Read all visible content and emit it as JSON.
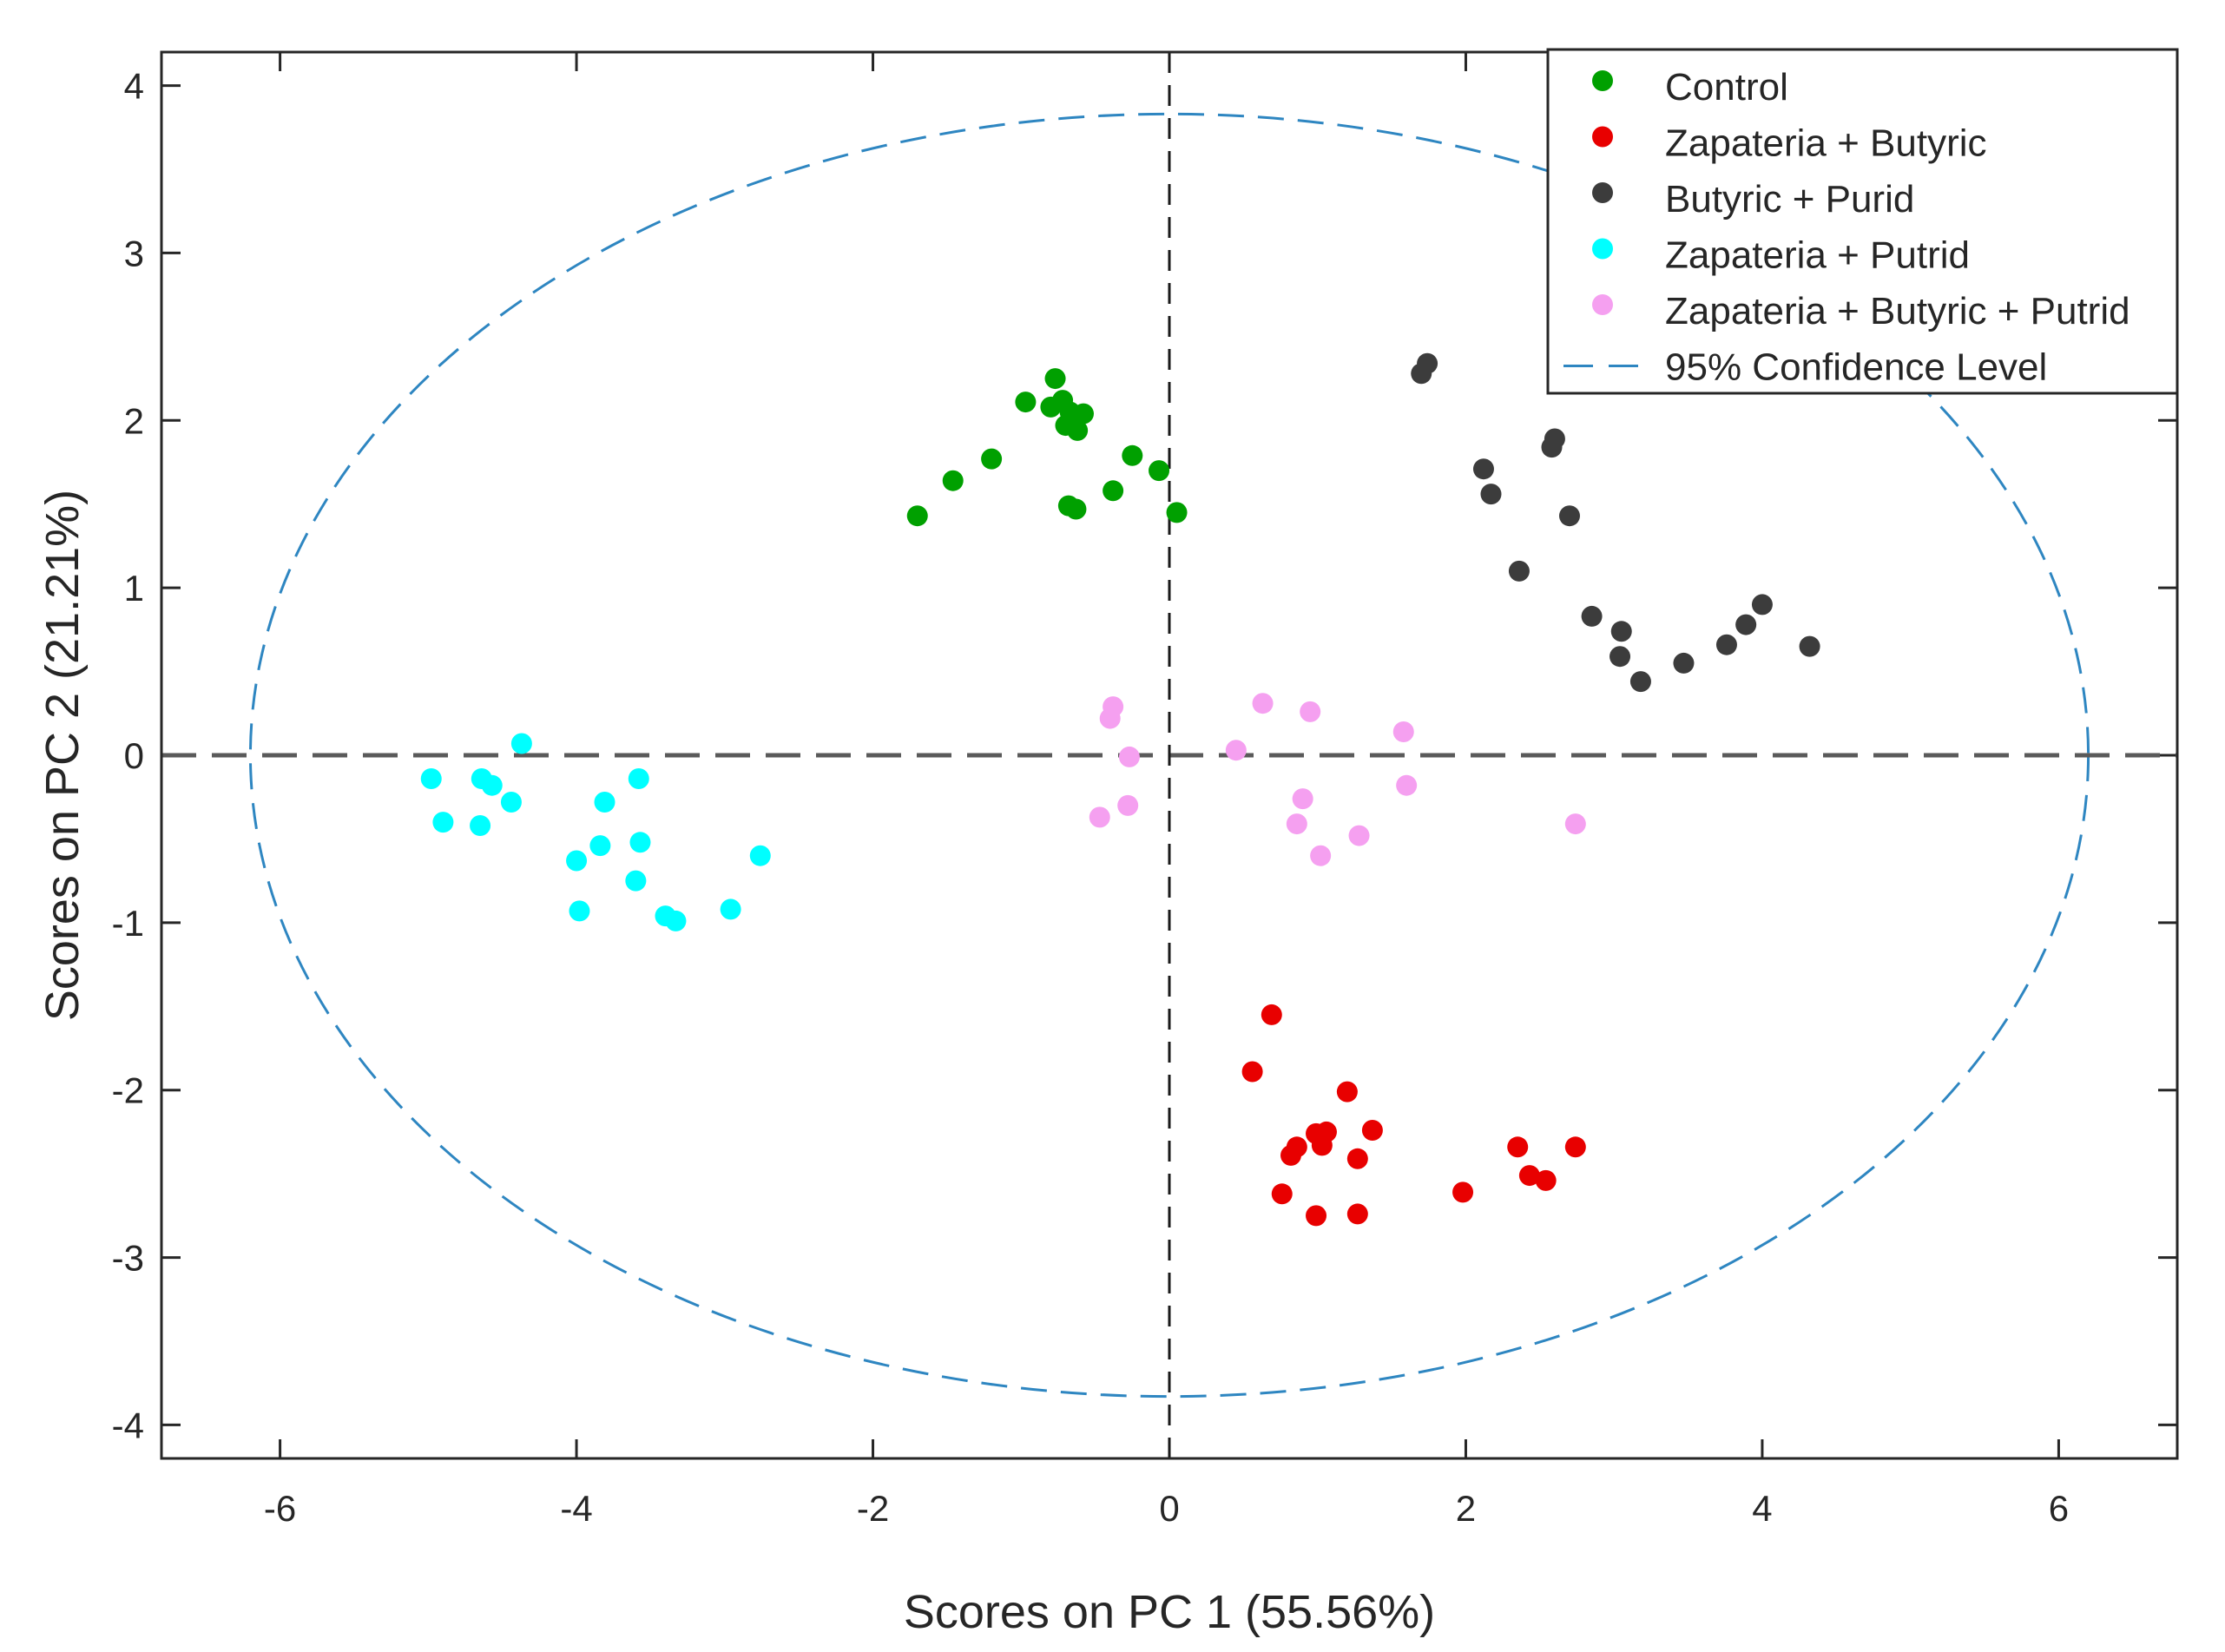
{
  "chart_data": {
    "type": "scatter",
    "title": "",
    "xlabel": "Scores on PC 1 (55.56%)",
    "ylabel": "Scores on PC 2 (21.21%)",
    "xlim": [
      -6.8,
      6.8
    ],
    "ylim": [
      -4.2,
      4.2
    ],
    "xticks": [
      -6,
      -4,
      -2,
      0,
      2,
      4,
      6
    ],
    "yticks": [
      -4,
      -3,
      -2,
      -1,
      0,
      1,
      2,
      3,
      4
    ],
    "grid": false,
    "legend_position": "top-right",
    "series": [
      {
        "name": "Control",
        "color": "#00a000",
        "points": [
          [
            -1.7,
            1.43
          ],
          [
            -1.46,
            1.64
          ],
          [
            -1.2,
            1.77
          ],
          [
            -0.97,
            2.11
          ],
          [
            -0.77,
            2.25
          ],
          [
            -0.8,
            2.08
          ],
          [
            -0.72,
            2.12
          ],
          [
            -0.67,
            2.05
          ],
          [
            -0.58,
            2.04
          ],
          [
            -0.7,
            1.97
          ],
          [
            -0.62,
            1.94
          ],
          [
            -0.68,
            1.49
          ],
          [
            -0.63,
            1.47
          ],
          [
            -0.38,
            1.58
          ],
          [
            -0.25,
            1.79
          ],
          [
            -0.07,
            1.7
          ],
          [
            0.05,
            1.45
          ]
        ]
      },
      {
        "name": "Zapateria + Butyric",
        "color": "#e80000",
        "points": [
          [
            0.69,
            -1.55
          ],
          [
            0.56,
            -1.89
          ],
          [
            0.86,
            -2.34
          ],
          [
            0.82,
            -2.39
          ],
          [
            0.99,
            -2.26
          ],
          [
            1.06,
            -2.25
          ],
          [
            1.03,
            -2.33
          ],
          [
            1.2,
            -2.01
          ],
          [
            1.37,
            -2.24
          ],
          [
            1.27,
            -2.41
          ],
          [
            0.76,
            -2.62
          ],
          [
            0.99,
            -2.75
          ],
          [
            1.27,
            -2.74
          ],
          [
            1.98,
            -2.61
          ],
          [
            2.35,
            -2.34
          ],
          [
            2.43,
            -2.51
          ],
          [
            2.54,
            -2.54
          ],
          [
            2.74,
            -2.34
          ]
        ]
      },
      {
        "name": "Butyric + Purid",
        "color": "#3c3c3c",
        "points": [
          [
            1.7,
            2.28
          ],
          [
            1.74,
            2.34
          ],
          [
            2.12,
            1.71
          ],
          [
            2.17,
            1.56
          ],
          [
            2.36,
            1.1
          ],
          [
            2.58,
            1.84
          ],
          [
            2.6,
            1.89
          ],
          [
            2.7,
            1.43
          ],
          [
            2.85,
            0.83
          ],
          [
            3.05,
            0.74
          ],
          [
            3.04,
            0.59
          ],
          [
            3.18,
            0.44
          ],
          [
            3.47,
            0.55
          ],
          [
            3.76,
            0.66
          ],
          [
            3.89,
            0.78
          ],
          [
            4.0,
            0.9
          ],
          [
            4.32,
            0.65
          ]
        ]
      },
      {
        "name": "Zapateria + Putrid",
        "color": "#00ffff",
        "points": [
          [
            -4.37,
            0.07
          ],
          [
            -4.98,
            -0.14
          ],
          [
            -4.64,
            -0.14
          ],
          [
            -4.57,
            -0.18
          ],
          [
            -4.44,
            -0.28
          ],
          [
            -4.9,
            -0.4
          ],
          [
            -4.65,
            -0.42
          ],
          [
            -3.58,
            -0.14
          ],
          [
            -3.81,
            -0.28
          ],
          [
            -3.57,
            -0.52
          ],
          [
            -3.84,
            -0.54
          ],
          [
            -4.0,
            -0.63
          ],
          [
            -3.6,
            -0.75
          ],
          [
            -3.98,
            -0.93
          ],
          [
            -3.4,
            -0.96
          ],
          [
            -3.33,
            -0.99
          ],
          [
            -2.96,
            -0.92
          ],
          [
            -2.76,
            -0.6
          ]
        ]
      },
      {
        "name": "Zapateria + Butyric + Putrid",
        "color": "#f5a0f0",
        "points": [
          [
            -0.38,
            0.29
          ],
          [
            -0.4,
            0.22
          ],
          [
            -0.27,
            -0.01
          ],
          [
            -0.28,
            -0.3
          ],
          [
            -0.47,
            -0.37
          ],
          [
            0.45,
            0.03
          ],
          [
            0.63,
            0.31
          ],
          [
            0.95,
            0.26
          ],
          [
            0.9,
            -0.26
          ],
          [
            0.86,
            -0.41
          ],
          [
            1.02,
            -0.6
          ],
          [
            1.28,
            -0.48
          ],
          [
            1.58,
            0.14
          ],
          [
            1.6,
            -0.18
          ],
          [
            2.74,
            -0.41
          ]
        ]
      },
      {
        "name": "95% Confidence Level",
        "color": "#2e86c1",
        "style": "dashed-ellipse",
        "center": [
          0,
          0
        ],
        "semi_axes": [
          6.2,
          3.83
        ]
      }
    ]
  }
}
